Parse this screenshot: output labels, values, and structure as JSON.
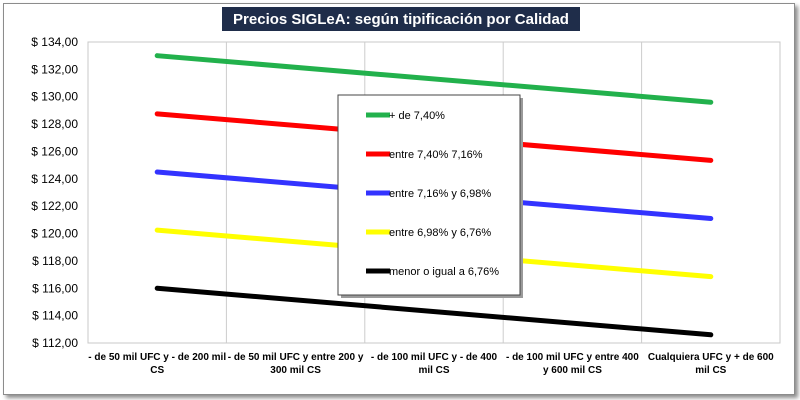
{
  "chart_data": {
    "type": "line",
    "title": "Precios SIGLeA: según tipificación por Calidad",
    "y_tick_labels": [
      "$ 112,00",
      "$ 114,00",
      "$ 116,00",
      "$ 118,00",
      "$ 120,00",
      "$ 122,00",
      "$ 124,00",
      "$ 126,00",
      "$ 128,00",
      "$ 130,00",
      "$ 132,00",
      "$ 134,00"
    ],
    "ylim": [
      112,
      134
    ],
    "y_step": 2,
    "grid": "vertical",
    "legend_position": "center",
    "categories": [
      [
        "- de 50 mil UFC y - de 200 mil",
        "CS"
      ],
      [
        "- de 50 mil UFC y entre 200 y",
        "300 mil CS"
      ],
      [
        "- de 100 mil UFC y - de 400",
        "mil CS"
      ],
      [
        "- de 100 mil UFC y entre 400",
        "y 600 mil CS"
      ],
      [
        "Cualquiera UFC y + de 600",
        "mil CS"
      ]
    ],
    "series": [
      {
        "name": "+ de 7,40%",
        "color": "#22b14c",
        "start": 133.0,
        "end": 129.6
      },
      {
        "name": "entre 7,40% 7,16%",
        "color": "#ff0000",
        "start": 128.75,
        "end": 125.35
      },
      {
        "name": "entre 7,16% y 6,98%",
        "color": "#3333ff",
        "start": 124.5,
        "end": 121.1
      },
      {
        "name": "entre 6,98% y 6,76%",
        "color": "#ffff00",
        "start": 120.25,
        "end": 116.85
      },
      {
        "name": "menor o igual a 6,76%",
        "color": "#000000",
        "start": 116.0,
        "end": 112.6
      }
    ]
  }
}
